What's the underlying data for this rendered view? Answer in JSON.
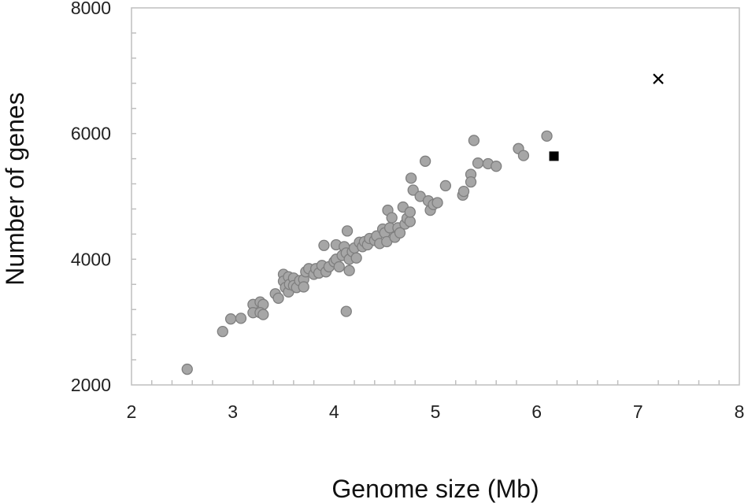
{
  "chart_data": {
    "type": "scatter",
    "title": "",
    "xlabel": "Genome size (Mb)",
    "ylabel": "Number of genes",
    "xlim": [
      2,
      8
    ],
    "ylim": [
      2000,
      8000
    ],
    "x_ticks": [
      "2",
      "3",
      "4",
      "5",
      "6",
      "7",
      "8"
    ],
    "y_ticks": [
      "2000",
      "4000",
      "6000",
      "8000"
    ],
    "grid": false,
    "legend": "none",
    "series": [
      {
        "marker": "circle",
        "color": "#a6a6a6",
        "stroke": "#7f7f7f",
        "points": [
          [
            2.55,
            2250
          ],
          [
            2.9,
            2850
          ],
          [
            2.98,
            3050
          ],
          [
            3.08,
            3060
          ],
          [
            3.2,
            3280
          ],
          [
            3.2,
            3150
          ],
          [
            3.27,
            3320
          ],
          [
            3.3,
            3280
          ],
          [
            3.27,
            3150
          ],
          [
            3.3,
            3120
          ],
          [
            3.42,
            3450
          ],
          [
            3.45,
            3380
          ],
          [
            3.5,
            3760
          ],
          [
            3.5,
            3650
          ],
          [
            3.52,
            3550
          ],
          [
            3.55,
            3720
          ],
          [
            3.55,
            3480
          ],
          [
            3.56,
            3600
          ],
          [
            3.6,
            3700
          ],
          [
            3.6,
            3580
          ],
          [
            3.63,
            3550
          ],
          [
            3.66,
            3660
          ],
          [
            3.7,
            3680
          ],
          [
            3.7,
            3560
          ],
          [
            3.72,
            3800
          ],
          [
            3.75,
            3850
          ],
          [
            3.8,
            3760
          ],
          [
            3.82,
            3850
          ],
          [
            3.85,
            3780
          ],
          [
            3.88,
            3900
          ],
          [
            3.9,
            4220
          ],
          [
            3.92,
            3800
          ],
          [
            3.95,
            3880
          ],
          [
            4.0,
            3960
          ],
          [
            4.02,
            4000
          ],
          [
            4.02,
            4230
          ],
          [
            4.05,
            3880
          ],
          [
            4.08,
            4060
          ],
          [
            4.1,
            4200
          ],
          [
            4.12,
            3170
          ],
          [
            4.12,
            4100
          ],
          [
            4.13,
            4450
          ],
          [
            4.15,
            3820
          ],
          [
            4.15,
            4000
          ],
          [
            4.18,
            4120
          ],
          [
            4.2,
            4180
          ],
          [
            4.22,
            4020
          ],
          [
            4.25,
            4270
          ],
          [
            4.28,
            4200
          ],
          [
            4.3,
            4280
          ],
          [
            4.33,
            4230
          ],
          [
            4.35,
            4330
          ],
          [
            4.4,
            4300
          ],
          [
            4.42,
            4370
          ],
          [
            4.45,
            4250
          ],
          [
            4.48,
            4480
          ],
          [
            4.5,
            4420
          ],
          [
            4.52,
            4280
          ],
          [
            4.53,
            4780
          ],
          [
            4.55,
            4500
          ],
          [
            4.57,
            4660
          ],
          [
            4.6,
            4350
          ],
          [
            4.63,
            4500
          ],
          [
            4.65,
            4420
          ],
          [
            4.68,
            4830
          ],
          [
            4.7,
            4560
          ],
          [
            4.72,
            4650
          ],
          [
            4.75,
            4600
          ],
          [
            4.75,
            4750
          ],
          [
            4.76,
            5290
          ],
          [
            4.78,
            5100
          ],
          [
            4.85,
            5000
          ],
          [
            4.9,
            5560
          ],
          [
            4.93,
            4930
          ],
          [
            4.95,
            4780
          ],
          [
            4.98,
            4870
          ],
          [
            5.02,
            4900
          ],
          [
            5.1,
            5170
          ],
          [
            5.27,
            5020
          ],
          [
            5.28,
            5080
          ],
          [
            5.35,
            5350
          ],
          [
            5.35,
            5230
          ],
          [
            5.38,
            5890
          ],
          [
            5.42,
            5530
          ],
          [
            5.52,
            5520
          ],
          [
            5.6,
            5480
          ],
          [
            5.82,
            5760
          ],
          [
            5.87,
            5650
          ],
          [
            6.1,
            5960
          ]
        ]
      },
      {
        "marker": "square",
        "color": "#000000",
        "points": [
          [
            6.17,
            5640
          ]
        ]
      },
      {
        "marker": "cross",
        "color": "#000000",
        "points": [
          [
            7.2,
            6870
          ]
        ]
      }
    ]
  }
}
